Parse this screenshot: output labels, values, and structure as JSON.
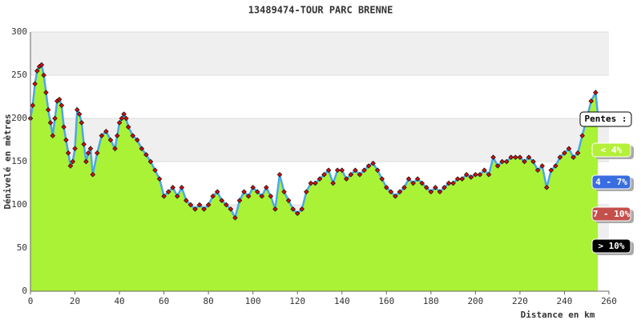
{
  "chart_data": {
    "type": "area",
    "title": "13489474-TOUR PARC BRENNE",
    "x_label": "Distance en km",
    "y_label": "Dénivelé en mètres",
    "x": [
      0,
      1,
      2,
      3,
      4,
      5,
      6,
      7,
      8,
      9,
      10,
      11,
      12,
      13,
      14,
      15,
      16,
      17,
      18,
      19,
      20,
      21,
      22,
      23,
      24,
      25,
      26,
      27,
      28,
      30,
      32,
      34,
      36,
      38,
      39,
      40,
      41,
      42,
      43,
      44,
      46,
      48,
      50,
      52,
      54,
      56,
      58,
      60,
      62,
      64,
      66,
      68,
      70,
      72,
      74,
      76,
      78,
      80,
      82,
      84,
      86,
      88,
      90,
      92,
      94,
      96,
      98,
      100,
      102,
      104,
      106,
      108,
      110,
      112,
      114,
      116,
      118,
      120,
      122,
      124,
      126,
      128,
      130,
      132,
      134,
      136,
      138,
      140,
      142,
      144,
      146,
      148,
      150,
      152,
      154,
      156,
      158,
      160,
      162,
      164,
      166,
      168,
      170,
      172,
      174,
      176,
      178,
      180,
      182,
      184,
      186,
      188,
      190,
      192,
      194,
      196,
      198,
      200,
      202,
      204,
      206,
      208,
      210,
      212,
      214,
      216,
      218,
      220,
      222,
      224,
      226,
      228,
      230,
      232,
      234,
      236,
      238,
      240,
      242,
      244,
      246,
      248,
      250,
      252,
      254,
      255
    ],
    "series": [
      {
        "color": "#aaf236",
        "line_color": "#4da6e6",
        "marker_color": "#cc1111",
        "values": [
          200,
          215,
          240,
          255,
          260,
          262,
          250,
          230,
          210,
          195,
          180,
          200,
          220,
          222,
          215,
          190,
          175,
          160,
          145,
          150,
          165,
          210,
          205,
          195,
          170,
          150,
          160,
          165,
          135,
          160,
          180,
          185,
          175,
          165,
          180,
          195,
          200,
          205,
          200,
          190,
          180,
          175,
          165,
          158,
          150,
          140,
          130,
          110,
          115,
          120,
          110,
          120,
          105,
          100,
          95,
          100,
          95,
          100,
          110,
          115,
          105,
          100,
          95,
          85,
          105,
          115,
          110,
          120,
          115,
          110,
          120,
          110,
          95,
          135,
          115,
          105,
          95,
          90,
          95,
          115,
          125,
          125,
          130,
          135,
          140,
          125,
          140,
          140,
          130,
          135,
          140,
          135,
          140,
          145,
          148,
          140,
          130,
          120,
          115,
          110,
          115,
          120,
          130,
          125,
          130,
          125,
          120,
          115,
          120,
          115,
          120,
          125,
          125,
          130,
          130,
          135,
          132,
          135,
          135,
          140,
          135,
          155,
          145,
          150,
          150,
          155,
          155,
          155,
          150,
          155,
          150,
          140,
          145,
          120,
          140,
          145,
          155,
          160,
          165,
          155,
          160,
          180,
          200,
          220,
          230,
          205
        ]
      }
    ],
    "xlim": [
      0,
      260
    ],
    "ylim": [
      0,
      300
    ],
    "xticks": [
      0,
      20,
      40,
      60,
      80,
      100,
      120,
      140,
      160,
      180,
      200,
      220,
      240,
      260
    ],
    "yticks": [
      0,
      50,
      100,
      150,
      200,
      250,
      300
    ],
    "grid": true,
    "legend_title": "Pentes :",
    "legend": [
      {
        "label": "< 4%",
        "color": "#b4f03a"
      },
      {
        "label": "4 - 7%",
        "color": "#3a6ee0"
      },
      {
        "label": "7 - 10%",
        "color": "#c4504c"
      },
      {
        "label": "> 10%",
        "color": "#000000"
      }
    ]
  }
}
